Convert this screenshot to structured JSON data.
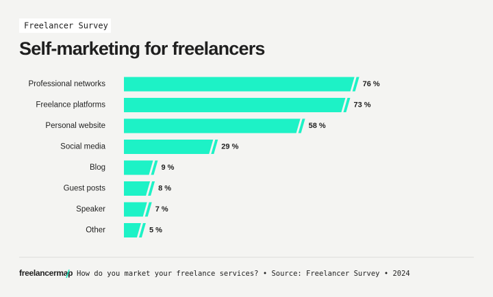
{
  "chart_data": {
    "type": "hbar",
    "tag": "Freelancer Survey",
    "title": "Self-marketing for freelancers",
    "categories": [
      "Professional networks",
      "Freelance platforms",
      "Personal website",
      "Social media",
      "Blog",
      "Guest posts",
      "Speaker",
      "Other"
    ],
    "values": [
      76,
      73,
      58,
      29,
      9,
      8,
      7,
      5
    ],
    "value_labels": [
      "76 %",
      "73 %",
      "58 %",
      "29 %",
      "9 %",
      "8 %",
      "7 %",
      "5 %"
    ],
    "color": "#1df2c6",
    "brand": "freelancermap",
    "source": "How do you market your freelance services? • Source: Freelancer Survey • 2024"
  }
}
